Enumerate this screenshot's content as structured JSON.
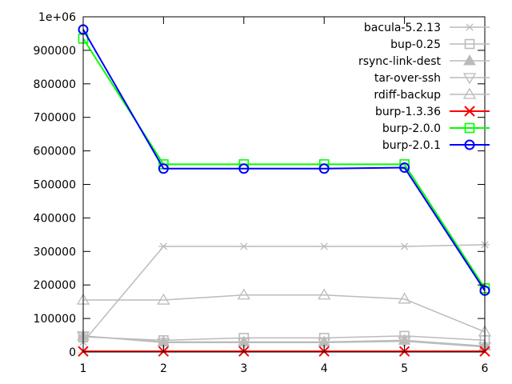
{
  "chart_data": {
    "type": "line",
    "title": "",
    "xlabel": "",
    "ylabel": "",
    "x": [
      1,
      2,
      3,
      4,
      5,
      6
    ],
    "xlim": [
      1,
      6
    ],
    "ylim": [
      0,
      1000000
    ],
    "x_ticks": [
      "1",
      "2",
      "3",
      "4",
      "5",
      "6"
    ],
    "y_ticks": [
      0,
      100000,
      200000,
      300000,
      400000,
      500000,
      600000,
      700000,
      800000,
      900000,
      1000000
    ],
    "y_tick_labels": [
      "0",
      "100000",
      "200000",
      "300000",
      "400000",
      "500000",
      "600000",
      "700000",
      "800000",
      "900000",
      "1e+06"
    ],
    "grid": false,
    "legend_placement": "top-right",
    "series": [
      {
        "name": "bacula-5.2.13",
        "marker": "asterisk",
        "color": "#bbbbbb",
        "values": [
          30000,
          315000,
          315000,
          315000,
          315000,
          320000
        ]
      },
      {
        "name": "bup-0.25",
        "marker": "square",
        "color": "#bbbbbb",
        "values": [
          45000,
          35000,
          42000,
          42000,
          48000,
          35000
        ]
      },
      {
        "name": "rsync-link-dest",
        "marker": "filled-triangle",
        "color": "#bbbbbb",
        "values": [
          48000,
          30000,
          30000,
          30000,
          35000,
          18000
        ]
      },
      {
        "name": "tar-over-ssh",
        "marker": "inverted-triangle",
        "color": "#bbbbbb",
        "values": [
          48000,
          28000,
          28000,
          28000,
          32000,
          15000
        ]
      },
      {
        "name": "rdiff-backup",
        "marker": "triangle",
        "color": "#bbbbbb",
        "values": [
          155000,
          155000,
          170000,
          170000,
          158000,
          60000
        ]
      },
      {
        "name": "burp-1.3.36",
        "marker": "x",
        "color": "#ff0000",
        "values": [
          2000,
          2000,
          2000,
          2000,
          2000,
          2000
        ]
      },
      {
        "name": "burp-2.0.0",
        "marker": "square",
        "color": "#00ff00",
        "values": [
          935000,
          560000,
          560000,
          560000,
          560000,
          190000
        ]
      },
      {
        "name": "burp-2.0.1",
        "marker": "circle",
        "color": "#0000ff",
        "values": [
          962000,
          547000,
          547000,
          547000,
          550000,
          183000
        ]
      }
    ]
  }
}
